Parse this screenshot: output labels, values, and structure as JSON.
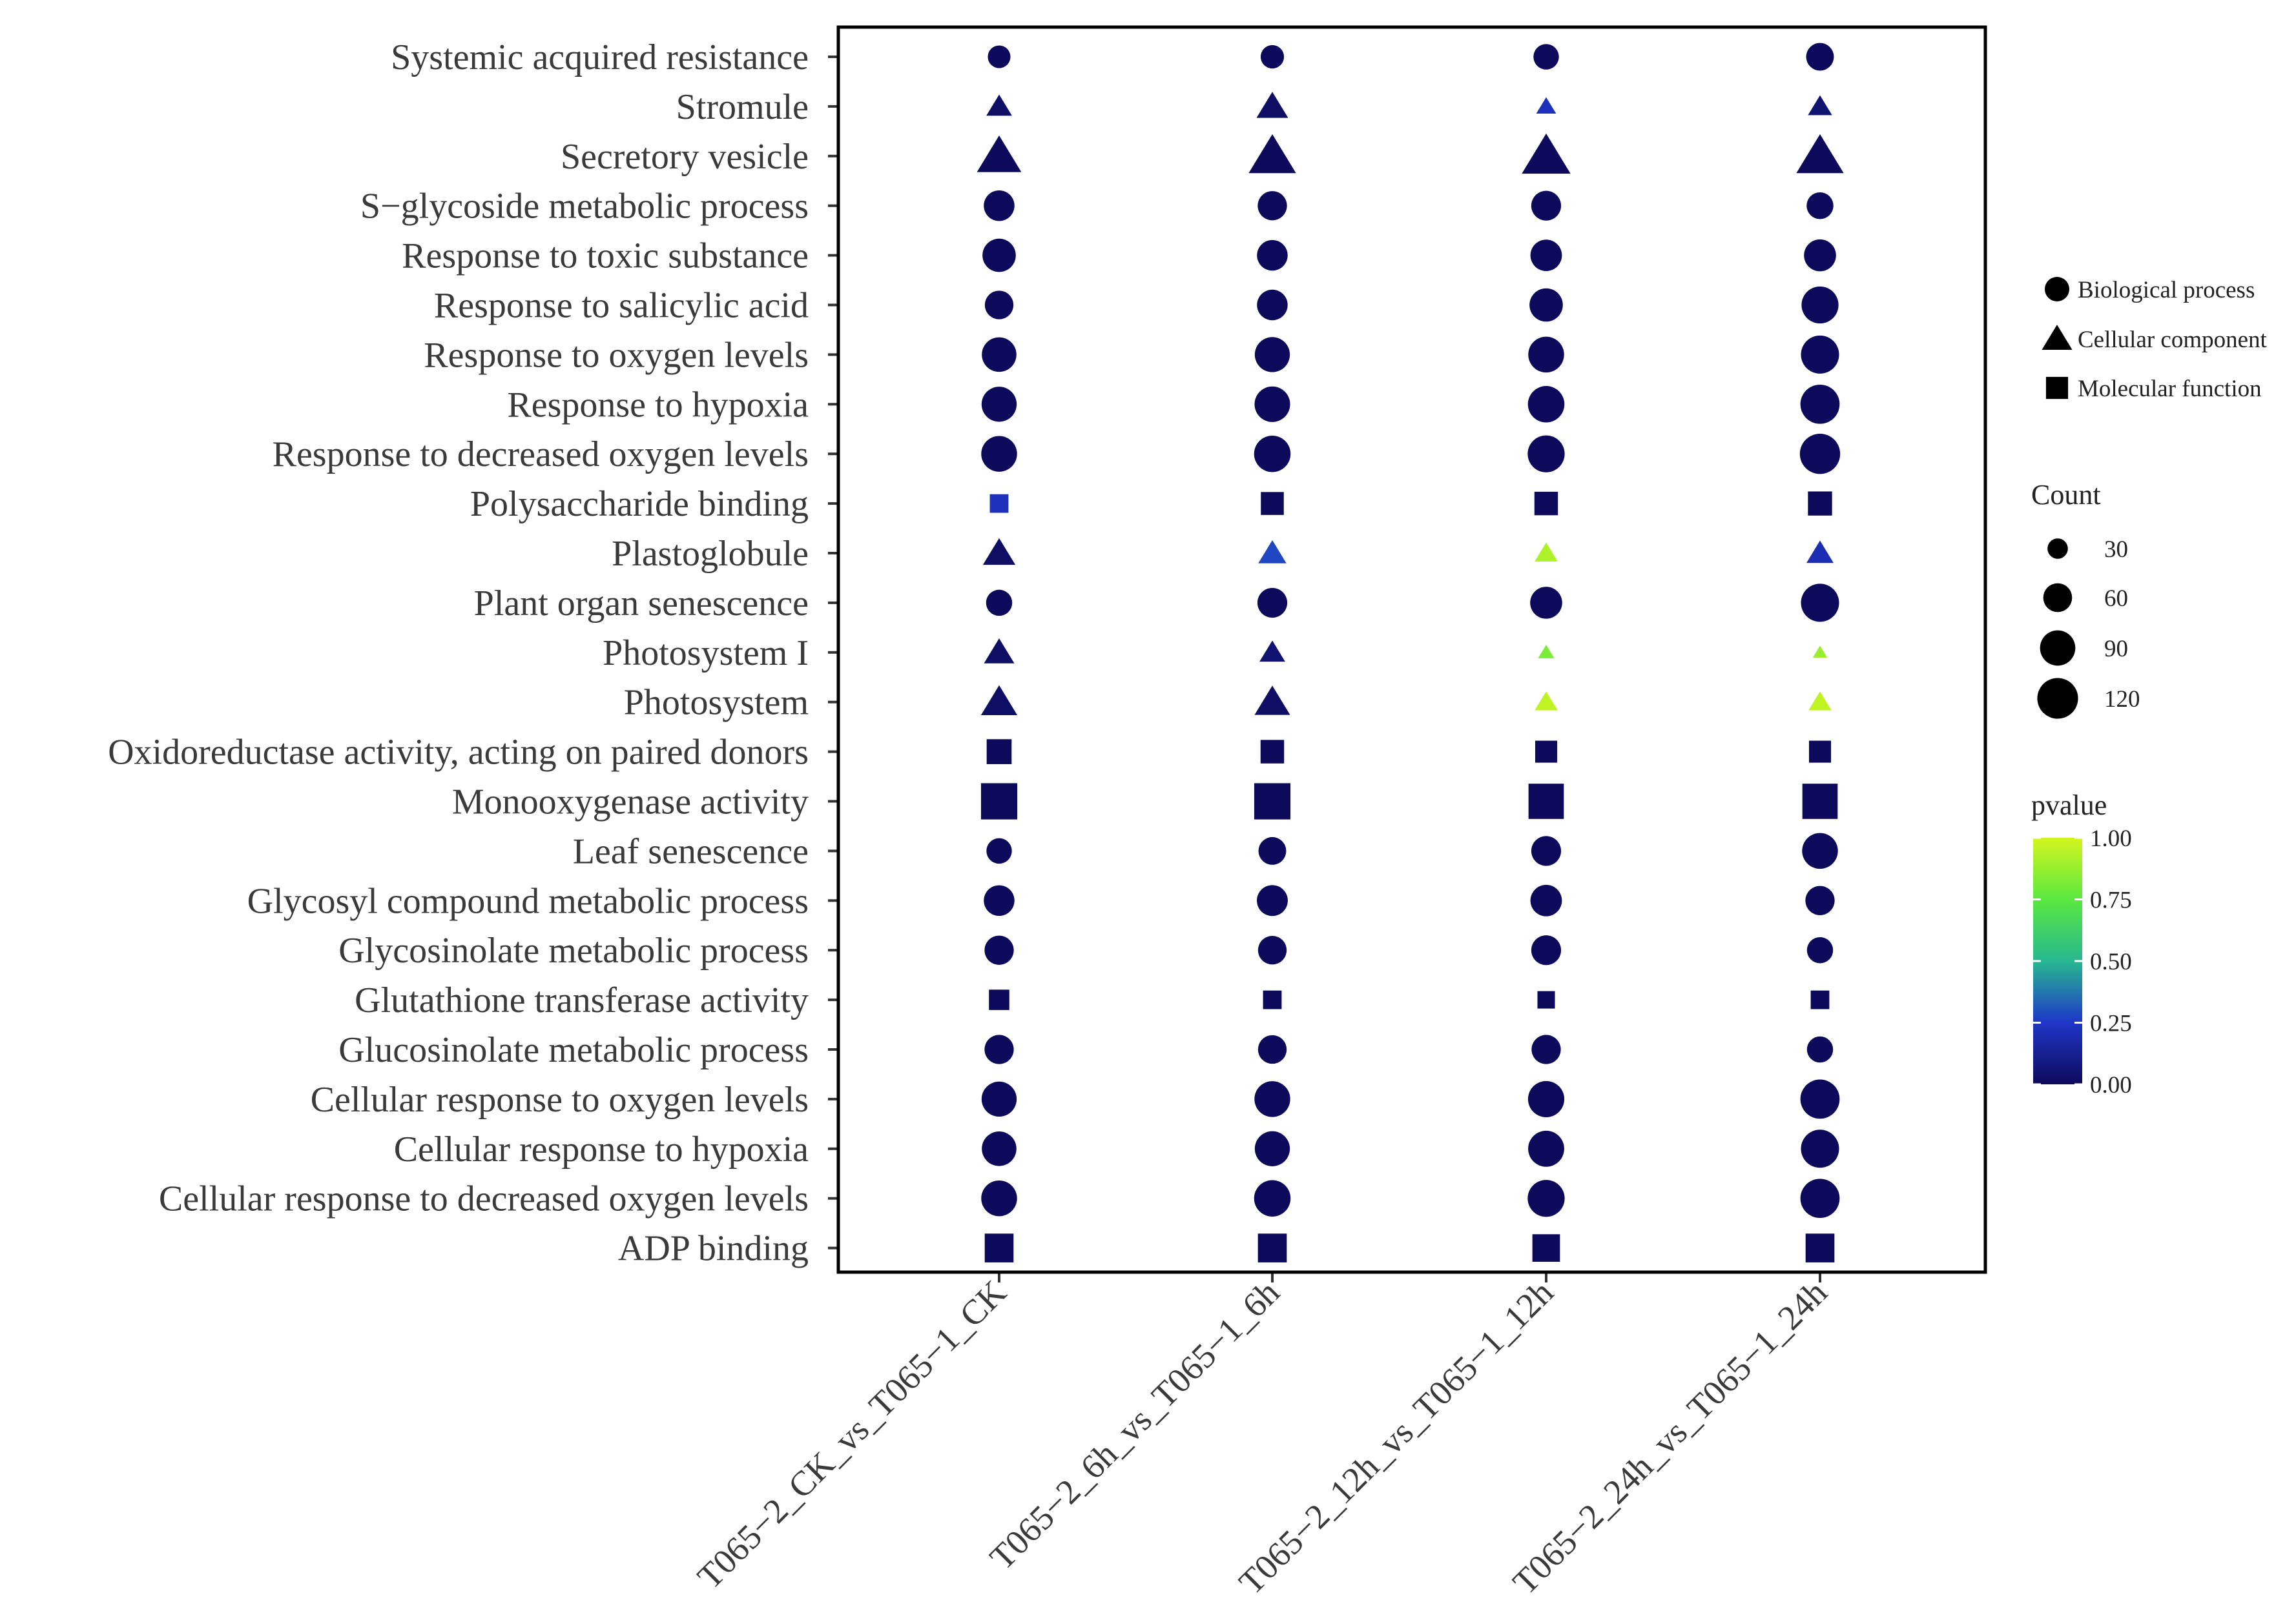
{
  "chart_data": {
    "type": "scatter",
    "subtype": "dot-plot",
    "x_categories": [
      "T065−2_CK_vs_T065−1_CK",
      "T065−2_6h_vs_T065−1_6h",
      "T065−2_12h_vs_T065−1_12h",
      "T065−2_24h_vs_T065−1_24h"
    ],
    "y_categories": [
      "Systemic acquired resistance",
      "Stromule",
      "Secretory vesicle",
      "S−glycoside metabolic process",
      "Response to toxic substance",
      "Response to salicylic acid",
      "Response to oxygen levels",
      "Response to hypoxia",
      "Response to decreased oxygen levels",
      "Polysaccharide binding",
      "Plastoglobule",
      "Plant organ senescence",
      "Photosystem I",
      "Photosystem",
      "Oxidoreductase activity, acting on paired donors",
      "Monooxygenase activity",
      "Leaf senescence",
      "Glycosyl compound metabolic process",
      "Glycosinolate metabolic process",
      "Glutathione transferase activity",
      "Glucosinolate metabolic process",
      "Cellular response to oxygen levels",
      "Cellular response to hypoxia",
      "Cellular response to decreased oxygen levels",
      "ADP binding"
    ],
    "ontology": [
      "BP",
      "CC",
      "CC",
      "BP",
      "BP",
      "BP",
      "BP",
      "BP",
      "BP",
      "MF",
      "CC",
      "BP",
      "CC",
      "CC",
      "MF",
      "MF",
      "BP",
      "BP",
      "BP",
      "MF",
      "BP",
      "BP",
      "BP",
      "BP",
      "MF"
    ],
    "count": [
      [
        30,
        32,
        38,
        45
      ],
      [
        25,
        38,
        15,
        22
      ],
      [
        75,
        85,
        90,
        85
      ],
      [
        55,
        50,
        52,
        42
      ],
      [
        65,
        55,
        58,
        60
      ],
      [
        48,
        55,
        65,
        80
      ],
      [
        70,
        72,
        75,
        85
      ],
      [
        72,
        74,
        78,
        90
      ],
      [
        75,
        78,
        80,
        95
      ],
      [
        25,
        38,
        40,
        42
      ],
      [
        40,
        30,
        20,
        28
      ],
      [
        40,
        52,
        60,
        85
      ],
      [
        35,
        25,
        10,
        8
      ],
      [
        50,
        48,
        20,
        20
      ],
      [
        45,
        40,
        35,
        35
      ],
      [
        95,
        95,
        90,
        90
      ],
      [
        38,
        45,
        52,
        75
      ],
      [
        55,
        56,
        58,
        50
      ],
      [
        50,
        48,
        52,
        40
      ],
      [
        30,
        25,
        22,
        25
      ],
      [
        50,
        48,
        50,
        40
      ],
      [
        72,
        75,
        77,
        90
      ],
      [
        70,
        72,
        76,
        85
      ],
      [
        75,
        78,
        80,
        90
      ],
      [
        60,
        60,
        55,
        60
      ]
    ],
    "pvalue": [
      [
        0.0,
        0.0,
        0.0,
        0.0
      ],
      [
        0.02,
        0.02,
        0.22,
        0.05
      ],
      [
        0.0,
        0.0,
        0.0,
        0.0
      ],
      [
        0.0,
        0.0,
        0.0,
        0.0
      ],
      [
        0.0,
        0.0,
        0.0,
        0.0
      ],
      [
        0.0,
        0.0,
        0.0,
        0.0
      ],
      [
        0.0,
        0.0,
        0.0,
        0.0
      ],
      [
        0.0,
        0.0,
        0.0,
        0.0
      ],
      [
        0.0,
        0.0,
        0.0,
        0.0
      ],
      [
        0.22,
        0.0,
        0.0,
        0.0
      ],
      [
        0.02,
        0.28,
        0.92,
        0.2
      ],
      [
        0.0,
        0.0,
        0.0,
        0.0
      ],
      [
        0.02,
        0.05,
        0.82,
        0.88
      ],
      [
        0.02,
        0.02,
        0.96,
        0.96
      ],
      [
        0.0,
        0.0,
        0.0,
        0.0
      ],
      [
        0.0,
        0.0,
        0.0,
        0.0
      ],
      [
        0.0,
        0.0,
        0.0,
        0.0
      ],
      [
        0.0,
        0.0,
        0.0,
        0.0
      ],
      [
        0.0,
        0.0,
        0.0,
        0.0
      ],
      [
        0.0,
        0.0,
        0.0,
        0.0
      ],
      [
        0.0,
        0.0,
        0.0,
        0.0
      ],
      [
        0.0,
        0.0,
        0.0,
        0.0
      ],
      [
        0.0,
        0.0,
        0.0,
        0.0
      ],
      [
        0.0,
        0.0,
        0.0,
        0.0
      ],
      [
        0.0,
        0.0,
        0.0,
        0.0
      ]
    ],
    "shape_legend": [
      {
        "key": "BP",
        "label": "Biological process",
        "shape": "circle"
      },
      {
        "key": "CC",
        "label": "Cellular component",
        "shape": "triangle"
      },
      {
        "key": "MF",
        "label": "Molecular function",
        "shape": "square"
      }
    ],
    "size_legend": {
      "title": "Count",
      "values": [
        30,
        60,
        90,
        120
      ]
    },
    "color_legend": {
      "title": "pvalue",
      "range": [
        0,
        1
      ],
      "ticks": [
        "1.00",
        "0.75",
        "0.50",
        "0.25",
        "0.00"
      ],
      "gradient": [
        "#0d0a5b",
        "#1f36c8",
        "#27b890",
        "#5ae83f",
        "#d4f51f"
      ]
    },
    "grid": false,
    "legend_position": "right"
  }
}
